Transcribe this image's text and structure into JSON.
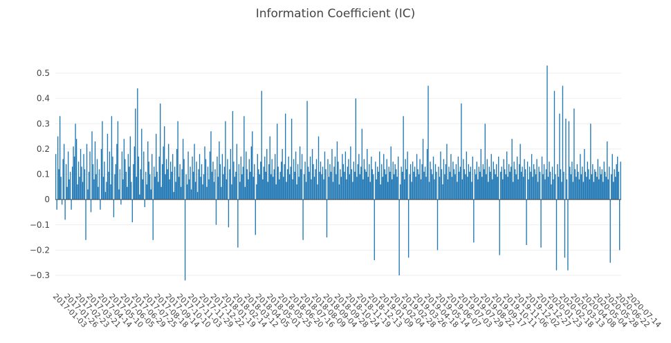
{
  "chart_data": {
    "type": "bar",
    "title": "Information Coefficient (IC)",
    "xlabel": "",
    "ylabel": "",
    "ylim": [
      -0.33,
      0.54
    ],
    "yticks": [
      -0.3,
      -0.2,
      -0.1,
      0,
      0.1,
      0.2,
      0.3,
      0.4,
      0.5
    ],
    "ytick_labels": [
      "−0.3",
      "−0.2",
      "−0.1",
      "0",
      "0.1",
      "0.2",
      "0.3",
      "0.4",
      "0.5"
    ],
    "xtick_labels": [
      "2017-01-03",
      "2017-01-26",
      "2017-02-23",
      "2017-03-21",
      "2017-04-14",
      "2017-05-10",
      "2017-06-05",
      "2017-06-29",
      "2017-07-25",
      "2017-08-18",
      "2017-09-14",
      "2017-10-10",
      "2017-11-03",
      "2017-11-29",
      "2017-12-22",
      "2018-01-19",
      "2018-02-14",
      "2018-03-12",
      "2018-04-05",
      "2018-05-01",
      "2018-05-25",
      "2018-06-20",
      "2018-07-16",
      "2018-08-09",
      "2018-09-04",
      "2018-09-28",
      "2018-10-24",
      "2018-11-19",
      "2018-12-13",
      "2019-01-09",
      "2019-02-04",
      "2019-02-28",
      "2019-03-26",
      "2019-04-18",
      "2019-05-14",
      "2019-06-07",
      "2019-07-03",
      "2019-07-29",
      "2019-08-22",
      "2019-09-17",
      "2019-10-11",
      "2019-11-06",
      "2019-12-02",
      "2019-12-27",
      "2020-01-23",
      "2020-02-18",
      "2020-03-13",
      "2020-04-08",
      "2020-05-04",
      "2020-05-28",
      "2020-06-22",
      "2020-07-14"
    ],
    "series": [
      {
        "color": "#1f77b4",
        "values": [
          0.18,
          -0.04,
          0.25,
          0.12,
          0.33,
          0.09,
          -0.02,
          0.16,
          0.22,
          -0.08,
          0.14,
          0.05,
          0.19,
          0.08,
          0.11,
          -0.04,
          0.13,
          0.21,
          0.17,
          0.3,
          0.24,
          0.06,
          0.15,
          0.09,
          0.2,
          0.13,
          0.07,
          0.18,
          0.12,
          -0.16,
          0.22,
          0.04,
          0.11,
          0.19,
          -0.05,
          0.27,
          0.14,
          0.08,
          0.23,
          0.1,
          0.16,
          0.05,
          0.12,
          -0.04,
          0.2,
          0.31,
          0.09,
          0.15,
          0.03,
          0.07,
          0.26,
          0.11,
          0.19,
          0.06,
          0.33,
          0.17,
          -0.07,
          0.1,
          0.14,
          0.22,
          0.31,
          0.04,
          0.12,
          -0.02,
          0.19,
          0.08,
          0.24,
          0.16,
          0.11,
          0.05,
          0.18,
          0.13,
          0.25,
          0.07,
          -0.09,
          0.14,
          0.21,
          0.36,
          0.09,
          0.44,
          0.17,
          0.02,
          0.12,
          0.28,
          0.08,
          0.19,
          -0.03,
          0.11,
          0.06,
          0.23,
          0.15,
          0.1,
          0.04,
          0.18,
          -0.16,
          0.13,
          0.09,
          0.26,
          0.11,
          0.07,
          0.17,
          0.38,
          0.05,
          0.14,
          0.21,
          0.29,
          0.1,
          0.16,
          0.12,
          0.22,
          0.08,
          0.15,
          0.11,
          0.18,
          0.03,
          0.13,
          0.07,
          0.2,
          0.31,
          0.09,
          0.14,
          0.05,
          0.12,
          0.24,
          0.16,
          -0.32,
          0.1,
          0.06,
          0.19,
          0.08,
          0.13,
          0.04,
          0.17,
          0.11,
          0.22,
          0.07,
          0.15,
          0.03,
          0.12,
          0.18,
          0.09,
          0.14,
          0.06,
          0.1,
          0.21,
          0.16,
          0.05,
          0.13,
          0.08,
          0.19,
          0.27,
          0.11,
          0.15,
          0.07,
          0.12,
          -0.1,
          0.17,
          0.09,
          0.23,
          0.14,
          0.05,
          0.18,
          0.1,
          0.13,
          0.31,
          0.08,
          0.16,
          -0.11,
          0.12,
          0.2,
          0.06,
          0.35,
          0.15,
          0.09,
          0.11,
          0.22,
          -0.19,
          0.14,
          0.07,
          0.17,
          0.1,
          0.13,
          0.33,
          0.05,
          0.19,
          0.12,
          0.08,
          0.16,
          0.11,
          0.21,
          0.27,
          0.09,
          0.14,
          -0.14,
          0.06,
          0.18,
          0.12,
          0.1,
          0.15,
          0.43,
          0.08,
          0.13,
          0.17,
          0.11,
          0.2,
          0.07,
          0.14,
          0.25,
          0.1,
          0.16,
          0.09,
          0.12,
          0.18,
          0.06,
          0.3,
          0.13,
          0.08,
          0.11,
          0.15,
          0.2,
          0.09,
          0.14,
          0.34,
          0.07,
          0.12,
          0.17,
          0.1,
          0.13,
          0.32,
          0.08,
          0.16,
          0.11,
          0.19,
          0.06,
          0.14,
          0.09,
          0.21,
          0.12,
          0.18,
          -0.16,
          0.1,
          0.15,
          0.07,
          0.39,
          0.13,
          0.11,
          0.17,
          0.08,
          0.2,
          0.14,
          0.09,
          0.12,
          0.16,
          0.06,
          0.25,
          0.11,
          0.15,
          0.1,
          0.13,
          0.08,
          0.19,
          0.12,
          -0.15,
          0.16,
          0.09,
          0.14,
          0.11,
          0.2,
          0.07,
          0.13,
          0.17,
          0.1,
          0.23,
          0.15,
          0.06,
          0.12,
          0.09,
          0.18,
          0.14,
          0.11,
          0.19,
          0.08,
          0.13,
          0.16,
          0.1,
          0.21,
          0.12,
          0.07,
          0.15,
          0.11,
          0.4,
          0.09,
          0.14,
          0.18,
          0.1,
          0.13,
          0.28,
          0.08,
          0.16,
          0.12,
          0.11,
          0.2,
          0.09,
          0.14,
          0.07,
          0.17,
          0.12,
          0.1,
          -0.24,
          0.15,
          0.08,
          0.13,
          0.11,
          0.19,
          0.06,
          0.14,
          0.09,
          0.18,
          0.12,
          0.1,
          0.16,
          0.07,
          0.13,
          0.11,
          0.21,
          0.08,
          0.15,
          0.1,
          0.14,
          0.12,
          0.09,
          0.17,
          -0.3,
          0.06,
          0.13,
          0.11,
          0.33,
          0.08,
          0.16,
          0.12,
          0.19,
          -0.23,
          0.1,
          0.14,
          0.07,
          0.15,
          0.11,
          0.13,
          0.09,
          0.18,
          0.12,
          0.1,
          0.16,
          0.08,
          0.14,
          0.24,
          0.11,
          0.13,
          0.09,
          0.2,
          0.45,
          0.07,
          0.15,
          0.12,
          0.1,
          0.17,
          0.08,
          0.14,
          0.11,
          -0.2,
          0.13,
          0.09,
          0.19,
          0.12,
          0.06,
          0.16,
          0.1,
          0.14,
          0.22,
          0.08,
          0.13,
          0.11,
          0.18,
          0.09,
          0.15,
          0.12,
          0.1,
          0.14,
          0.07,
          0.17,
          0.11,
          0.13,
          0.38,
          0.08,
          0.16,
          0.12,
          0.1,
          0.19,
          0.09,
          0.14,
          0.11,
          0.13,
          0.07,
          0.17,
          -0.17,
          0.12,
          0.1,
          0.15,
          0.08,
          0.13,
          0.11,
          0.2,
          0.09,
          0.14,
          0.12,
          0.3,
          0.1,
          0.16,
          0.07,
          0.13,
          0.11,
          0.18,
          0.08,
          0.15,
          0.12,
          0.1,
          0.14,
          0.09,
          0.17,
          -0.22,
          0.11,
          0.13,
          0.08,
          0.16,
          0.12,
          0.1,
          0.19,
          0.09,
          0.14,
          0.11,
          0.13,
          0.24,
          0.07,
          0.15,
          0.12,
          0.1,
          0.17,
          0.08,
          0.14,
          0.22,
          0.11,
          0.13,
          0.09,
          0.16,
          0.12,
          -0.18,
          0.15,
          0.08,
          0.13,
          0.11,
          0.18,
          0.09,
          0.14,
          0.12,
          0.1,
          0.16,
          0.07,
          0.13,
          0.11,
          -0.19,
          0.17,
          0.1,
          0.14,
          0.08,
          0.12,
          0.53,
          0.09,
          0.15,
          0.11,
          0.06,
          0.13,
          0.08,
          0.43,
          0.1,
          -0.28,
          0.14,
          0.09,
          0.34,
          0.12,
          0.07,
          0.45,
          0.11,
          -0.23,
          0.32,
          0.08,
          -0.28,
          0.31,
          0.13,
          0.1,
          0.15,
          0.07,
          0.36,
          0.12,
          0.09,
          0.14,
          0.11,
          0.08,
          0.18,
          0.1,
          0.13,
          0.07,
          0.2,
          0.11,
          0.09,
          0.15,
          0.12,
          0.08,
          0.3,
          0.1,
          0.14,
          0.07,
          0.12,
          0.11,
          0.09,
          0.16,
          0.08,
          0.13,
          0.1,
          0.12,
          0.07,
          0.15,
          0.11,
          0.09,
          0.23,
          0.08,
          0.13,
          -0.25,
          0.1,
          0.18,
          0.07,
          0.12,
          0.09,
          0.14,
          0.17,
          0.11,
          -0.2,
          0.15
        ]
      }
    ]
  }
}
